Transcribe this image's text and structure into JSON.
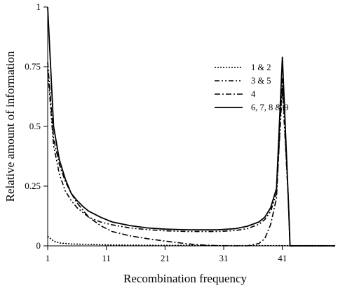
{
  "chart_data": {
    "type": "line",
    "title": "",
    "xlabel": "Recombination frequency",
    "ylabel": "Relative amount of information",
    "xlim": [
      1,
      50
    ],
    "ylim": [
      0,
      1
    ],
    "xticks": [
      1,
      11,
      21,
      31,
      41
    ],
    "xtick_labels": [
      "1",
      "11",
      "21",
      "31",
      "41"
    ],
    "yticks": [
      0,
      0.25,
      0.5,
      0.75,
      1
    ],
    "ytick_labels": [
      "0",
      "0.25",
      "0.5",
      "0.75",
      "1"
    ],
    "grid": false,
    "legend_position": "right",
    "series": [
      {
        "name": "1 & 2",
        "dash": "2,2",
        "x": [
          1,
          2,
          3,
          5,
          8,
          11,
          15,
          20,
          25,
          30,
          35,
          40,
          45,
          50
        ],
        "y": [
          0.04,
          0.02,
          0.012,
          0.008,
          0.006,
          0.004,
          0.003,
          0.002,
          0.002,
          0.001,
          0.001,
          0.001,
          0.001,
          0.001
        ]
      },
      {
        "name": "3 & 5",
        "dash": "7,3,2,3,2,3",
        "x": [
          1,
          2,
          3,
          4,
          5,
          6,
          7,
          8,
          10,
          12,
          15,
          18,
          21,
          25,
          30,
          33,
          35,
          37,
          38,
          39,
          40,
          41,
          42,
          42.3,
          50
        ],
        "y": [
          0.74,
          0.42,
          0.3,
          0.23,
          0.19,
          0.16,
          0.14,
          0.12,
          0.1,
          0.088,
          0.075,
          0.068,
          0.063,
          0.06,
          0.06,
          0.064,
          0.072,
          0.09,
          0.11,
          0.145,
          0.22,
          0.66,
          0.2,
          0.0,
          0.0
        ]
      },
      {
        "name": "4",
        "dash": "8,3,2,3",
        "x": [
          1,
          2,
          3,
          4,
          5,
          6,
          7,
          8,
          10,
          12,
          15,
          18,
          21,
          25,
          27,
          30,
          33,
          35,
          37,
          38,
          39,
          40,
          41,
          42,
          42.3,
          50
        ],
        "y": [
          0.77,
          0.45,
          0.34,
          0.27,
          0.22,
          0.18,
          0.15,
          0.12,
          0.085,
          0.06,
          0.042,
          0.03,
          0.02,
          0.008,
          0.004,
          0.001,
          0.0,
          0.0,
          0.01,
          0.03,
          0.09,
          0.2,
          0.7,
          0.2,
          0.0,
          0.0
        ]
      },
      {
        "name": "6, 7, 8 & 9",
        "dash": "",
        "x": [
          1,
          2,
          3,
          4,
          5,
          6,
          7,
          8,
          10,
          12,
          15,
          18,
          21,
          25,
          30,
          33,
          35,
          37,
          38,
          39,
          40,
          41,
          42,
          42.3,
          50
        ],
        "y": [
          1.0,
          0.5,
          0.36,
          0.28,
          0.22,
          0.19,
          0.165,
          0.145,
          0.12,
          0.1,
          0.085,
          0.075,
          0.07,
          0.067,
          0.067,
          0.072,
          0.082,
          0.1,
          0.12,
          0.16,
          0.24,
          0.79,
          0.2,
          0.0,
          0.0
        ]
      }
    ]
  }
}
